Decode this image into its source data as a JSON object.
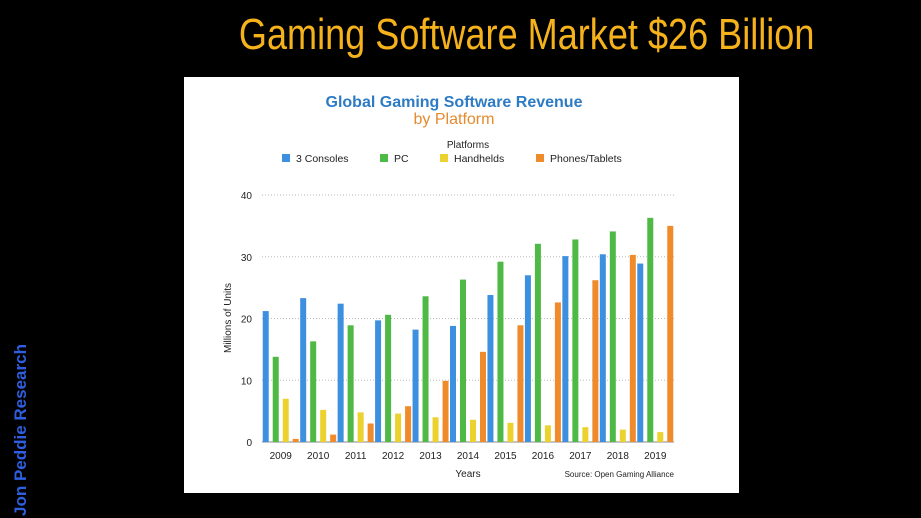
{
  "slide": {
    "title": "Gaming Software Market $26 Billion",
    "side_label": "Jon Peddie Research"
  },
  "chart_data": {
    "type": "bar",
    "title": "Global Gaming Software Revenue",
    "subtitle": "by Platform",
    "legend_title": "Platforms",
    "legend_position": "top",
    "xlabel": "Years",
    "ylabel": "Millions of Units",
    "ylim": [
      0,
      40
    ],
    "yticks": [
      0,
      10,
      20,
      30,
      40
    ],
    "grid": true,
    "source": "Source: Open Gaming Alliance",
    "categories": [
      "2009",
      "2010",
      "2011",
      "2012",
      "2013",
      "2014",
      "2015",
      "2016",
      "2017",
      "2018",
      "2019"
    ],
    "series": [
      {
        "name": "3 Consoles",
        "color": "#3d8fe0",
        "values": [
          21.2,
          23.3,
          22.4,
          19.7,
          18.2,
          18.8,
          23.8,
          27,
          30.1,
          30.4,
          28.9
        ]
      },
      {
        "name": "PC",
        "color": "#4fb946",
        "values": [
          13.8,
          16.3,
          18.9,
          20.6,
          23.6,
          26.3,
          29.2,
          32.1,
          32.8,
          34.1,
          36.3
        ]
      },
      {
        "name": "Handhelds",
        "color": "#ebd22e",
        "values": [
          7,
          5.2,
          4.8,
          4.6,
          4,
          3.6,
          3.1,
          2.7,
          2.4,
          2,
          1.6
        ]
      },
      {
        "name": "Phones/Tablets",
        "color": "#ef8b2b",
        "values": [
          0.5,
          1.2,
          3,
          5.8,
          9.9,
          14.6,
          18.9,
          22.6,
          26.2,
          30.3,
          35
        ]
      }
    ]
  }
}
